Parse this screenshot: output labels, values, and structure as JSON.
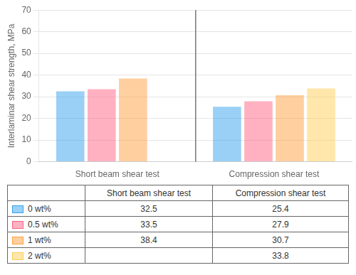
{
  "chart_data": {
    "type": "bar",
    "categories": [
      "Short beam shear test",
      "Compression shear test"
    ],
    "series": [
      {
        "name": "0 wt%",
        "values": [
          32.5,
          25.4
        ]
      },
      {
        "name": "0.5 wt%",
        "values": [
          33.5,
          27.9
        ]
      },
      {
        "name": "1 wt%",
        "values": [
          38.4,
          30.7
        ]
      },
      {
        "name": "2 wt%",
        "values": [
          null,
          33.8
        ]
      }
    ],
    "ylabel": "Interlaminar shear strength, MPa",
    "ylim": [
      0,
      70
    ],
    "yticks": [
      0,
      10,
      20,
      30,
      40,
      50,
      60,
      70
    ],
    "grid": true
  }
}
